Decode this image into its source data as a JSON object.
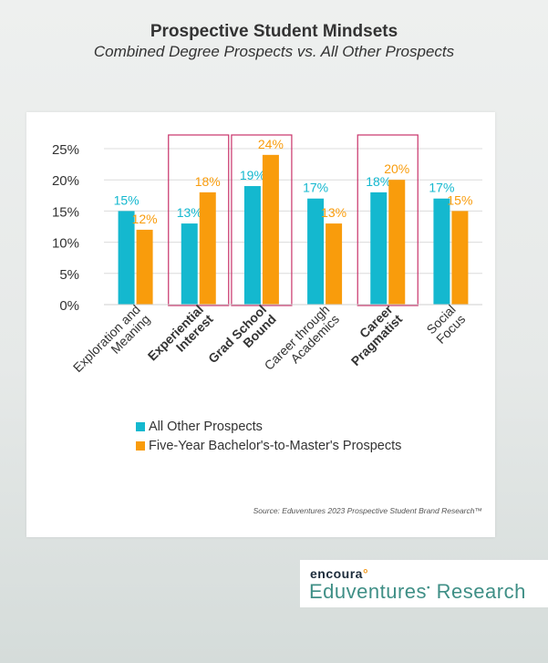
{
  "header": {
    "title": "Prospective Student Mindsets",
    "subtitle": "Combined Degree Prospects vs. All Other Prospects"
  },
  "chart_data": {
    "type": "bar",
    "categories": [
      [
        "Exploration and",
        "Meaning"
      ],
      [
        "Experiential",
        "Interest"
      ],
      [
        "Grad School",
        "Bound"
      ],
      [
        "Career through",
        "Academics"
      ],
      [
        "Career",
        "Pragmatist"
      ],
      [
        "Social",
        "Focus"
      ]
    ],
    "bold_categories": [
      false,
      true,
      true,
      false,
      true,
      false
    ],
    "highlighted_categories": [
      false,
      true,
      true,
      false,
      true,
      false
    ],
    "series": [
      {
        "name": "All Other Prospects",
        "values": [
          15,
          13,
          19,
          17,
          18,
          17
        ],
        "labels": [
          "15%",
          "13%",
          "19%",
          "17%",
          "18%",
          "17%"
        ],
        "color": "#14b8cf"
      },
      {
        "name": "Five-Year Bachelor's-to-Master's Prospects",
        "values": [
          12,
          18,
          24,
          13,
          20,
          15
        ],
        "labels": [
          "12%",
          "18%",
          "24%",
          "13%",
          "20%",
          "15%"
        ],
        "color": "#f99c0c"
      }
    ],
    "ylim": [
      0,
      25
    ],
    "yticks": [
      "0%",
      "5%",
      "10%",
      "15%",
      "20%",
      "25%"
    ],
    "grid": true,
    "legend_position": "bottom",
    "highlight_color": "#c8336a"
  },
  "footer": {
    "source": "Source: Eduventures 2023 Prospective Student Brand Research™"
  },
  "brand": {
    "logo": "encoura",
    "name": "Eduventures",
    "name_suffix": "Research"
  }
}
